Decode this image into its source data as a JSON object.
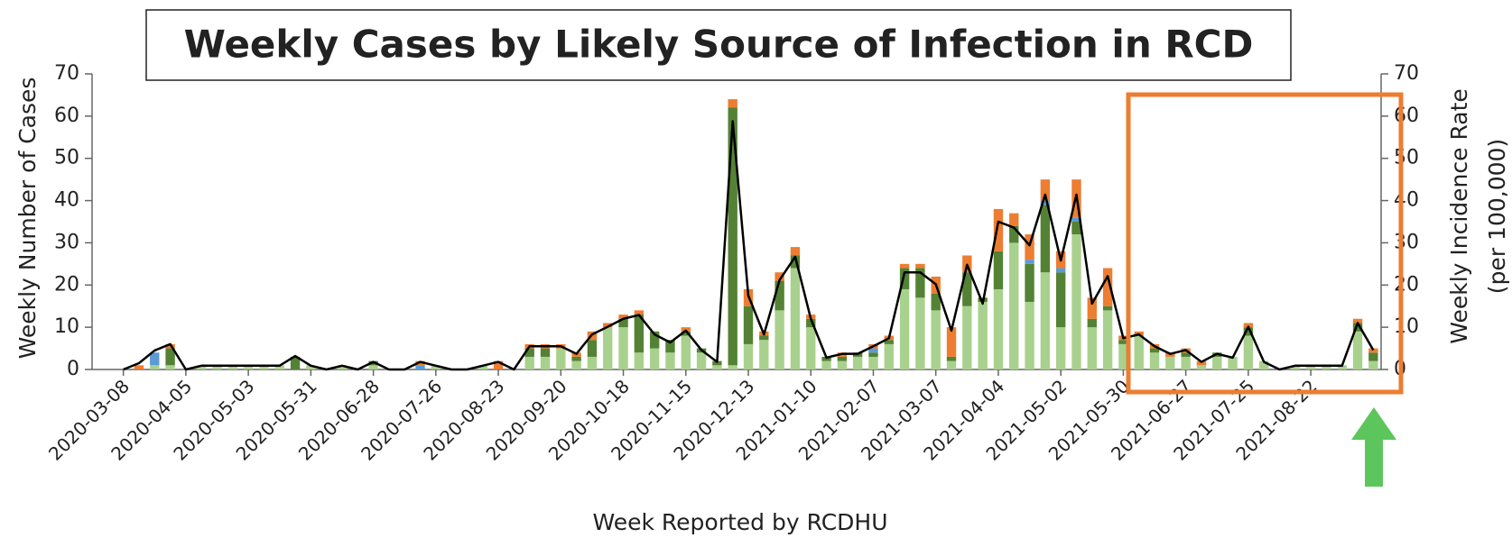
{
  "chart_data": {
    "type": "bar",
    "stacked": true,
    "title": "Weekly Cases by Likely Source of Infection in RCD",
    "xlabel": "Week Reported by RCDHU",
    "ylabel": "Weekly Number of Cases",
    "y2label": [
      "Weekly Incidence Rate",
      "(per 100,000)"
    ],
    "categories": [
      "2020-03-08",
      null,
      null,
      null,
      "2020-04-05",
      null,
      null,
      null,
      "2020-05-03",
      null,
      null,
      null,
      "2020-05-31",
      null,
      null,
      null,
      "2020-06-28",
      null,
      null,
      null,
      "2020-07-26",
      null,
      null,
      null,
      "2020-08-23",
      null,
      null,
      null,
      "2020-09-20",
      null,
      null,
      null,
      "2020-10-18",
      null,
      null,
      null,
      "2020-11-15",
      null,
      null,
      null,
      "2020-12-13",
      null,
      null,
      null,
      "2021-01-10",
      null,
      null,
      null,
      "2021-02-07",
      null,
      null,
      null,
      "2021-03-07",
      null,
      null,
      null,
      "2021-04-04",
      null,
      null,
      null,
      "2021-05-02",
      null,
      null,
      null,
      "2021-05-30",
      null,
      null,
      null,
      "2021-06-27",
      null,
      null,
      null,
      "2021-07-25",
      null,
      null,
      null,
      "2021-08-22",
      null,
      null,
      null,
      null
    ],
    "ylim": [
      0,
      70
    ],
    "yticks": [
      0,
      10,
      20,
      30,
      40,
      50,
      60,
      70
    ],
    "y2lim": [
      0,
      70
    ],
    "y2ticks": [
      0,
      10,
      20,
      30,
      40,
      50,
      60,
      70
    ],
    "grid": false,
    "series": [
      {
        "color": "#a9d18e",
        "values": [
          0,
          0,
          1,
          1,
          0,
          1,
          1,
          1,
          1,
          1,
          1,
          0,
          1,
          0,
          1,
          0,
          1,
          0,
          0,
          0,
          1,
          0,
          0,
          1,
          0,
          0,
          3,
          3,
          5,
          2,
          3,
          10,
          10,
          4,
          5,
          4,
          8,
          4,
          1,
          1,
          6,
          7,
          14,
          24,
          10,
          2,
          2,
          3,
          3,
          6,
          19,
          17,
          14,
          2,
          15,
          16,
          19,
          30,
          16,
          23,
          10,
          32,
          10,
          14,
          6,
          8,
          4,
          3,
          3,
          1,
          3,
          3,
          8,
          2,
          0,
          1,
          1,
          1,
          1,
          9,
          2
        ]
      },
      {
        "color": "#548235",
        "values": [
          0,
          0,
          0,
          4,
          0,
          0,
          0,
          0,
          0,
          0,
          0,
          3,
          0,
          0,
          0,
          0,
          1,
          0,
          0,
          0,
          0,
          0,
          0,
          0,
          0,
          0,
          2,
          2,
          0,
          1,
          4,
          0,
          2,
          9,
          4,
          3,
          1,
          1,
          1,
          61,
          9,
          1,
          7,
          3,
          2,
          1,
          1,
          1,
          1,
          1,
          5,
          7,
          4,
          1,
          8,
          1,
          9,
          4,
          9,
          16,
          13,
          3,
          2,
          1,
          1,
          0,
          1,
          0,
          1,
          0,
          1,
          0,
          2,
          0,
          0,
          0,
          0,
          0,
          0,
          2,
          2
        ]
      },
      {
        "color": "#5b9bd5",
        "values": [
          0,
          0,
          3,
          0,
          0,
          0,
          0,
          0,
          0,
          0,
          0,
          0,
          0,
          0,
          0,
          0,
          0,
          0,
          0,
          1,
          0,
          0,
          0,
          0,
          0,
          0,
          0,
          0,
          0,
          0,
          0,
          0,
          0,
          0,
          0,
          0,
          0,
          0,
          0,
          0,
          0,
          0,
          0,
          0,
          0,
          0,
          0,
          0,
          1,
          0,
          0,
          0,
          0,
          0,
          0,
          0,
          0,
          0,
          1,
          1,
          1,
          1,
          0,
          0,
          0,
          0,
          0,
          0,
          0,
          0,
          0,
          0,
          0,
          0,
          0,
          0,
          0,
          0,
          0,
          0,
          0
        ]
      },
      {
        "color": "#ed7d31",
        "values": [
          0,
          1,
          0,
          1,
          0,
          0,
          0,
          0,
          0,
          0,
          0,
          0,
          0,
          0,
          0,
          0,
          0,
          0,
          0,
          1,
          0,
          0,
          0,
          0,
          2,
          0,
          1,
          1,
          1,
          1,
          2,
          1,
          1,
          1,
          0,
          0,
          1,
          0,
          0,
          2,
          4,
          1,
          2,
          2,
          1,
          0,
          1,
          0,
          1,
          1,
          1,
          1,
          4,
          7,
          4,
          0,
          10,
          3,
          6,
          5,
          4,
          9,
          5,
          9,
          1,
          1,
          1,
          1,
          1,
          1,
          0,
          0,
          1,
          0,
          0,
          0,
          0,
          0,
          0,
          1,
          1
        ]
      },
      {
        "type": "line",
        "axis": "y2",
        "color": "#000000",
        "values": [
          0,
          1.5,
          4.5,
          6,
          0,
          0.9,
          0.9,
          0.9,
          0.9,
          0.9,
          0.9,
          3.2,
          0.9,
          0,
          0.9,
          0,
          1.8,
          0,
          0,
          1.8,
          0.9,
          0,
          0,
          0.9,
          1.8,
          0,
          5.5,
          5.5,
          5.5,
          3.7,
          8.3,
          10.1,
          12,
          12.9,
          8.3,
          6.4,
          9.2,
          4.6,
          1.8,
          58.8,
          17.5,
          8.3,
          21.2,
          26.7,
          12,
          2.8,
          3.7,
          3.7,
          5.5,
          7.4,
          23,
          23,
          20.2,
          9.2,
          24.8,
          15.6,
          35,
          33.6,
          29.4,
          41.4,
          25.8,
          41.4,
          15.6,
          22.1,
          7.4,
          8.3,
          5.5,
          3.7,
          4.6,
          1.8,
          3.7,
          2.8,
          10.1,
          1.8,
          0,
          0.9,
          0.9,
          0.9,
          0.9,
          11,
          4.6
        ]
      }
    ]
  }
}
